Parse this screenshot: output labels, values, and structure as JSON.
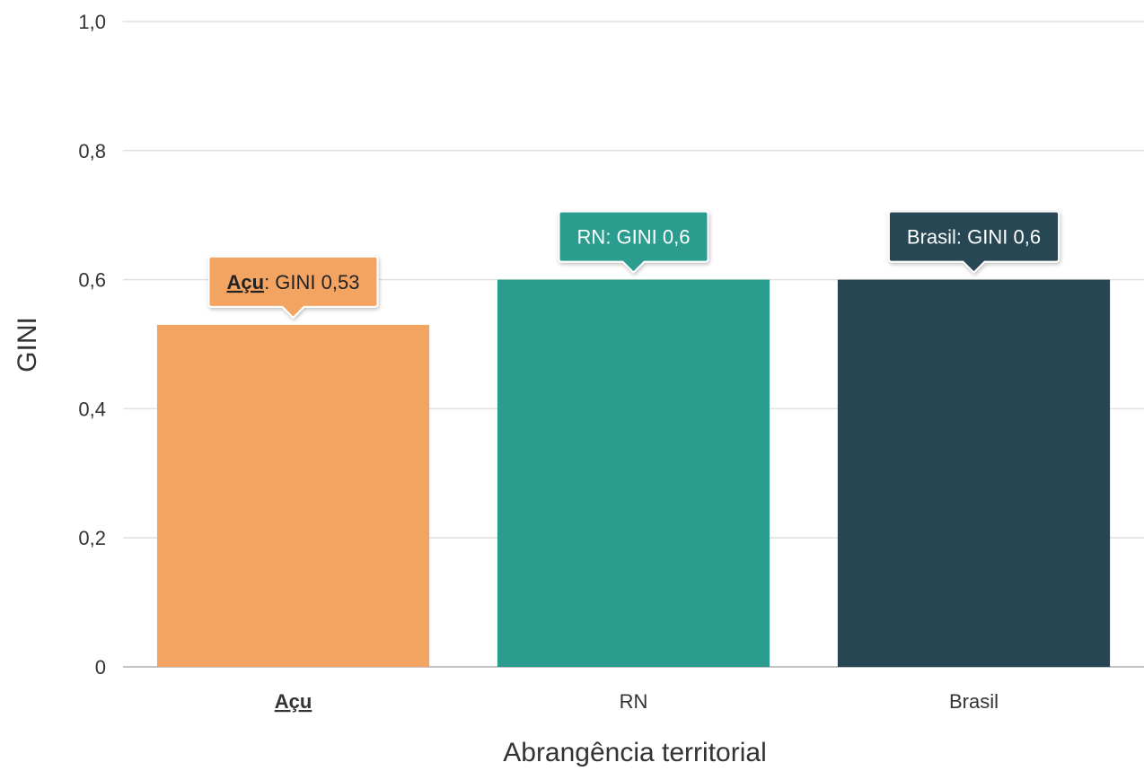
{
  "chart_data": {
    "type": "bar",
    "categories": [
      "Açu",
      "RN",
      "Brasil"
    ],
    "values": [
      0.53,
      0.6,
      0.6
    ],
    "colors": [
      "#f3a462",
      "#2a9d8f",
      "#264653"
    ],
    "highlight_category": "Açu",
    "xlabel": "Abrangência territorial",
    "ylabel": "GINI",
    "ylim": [
      0,
      1.0
    ],
    "yticks": [
      {
        "value": 0,
        "label": "0"
      },
      {
        "value": 0.2,
        "label": "0,2"
      },
      {
        "value": 0.4,
        "label": "0,4"
      },
      {
        "value": 0.6,
        "label": "0,6"
      },
      {
        "value": 0.8,
        "label": "0,8"
      },
      {
        "value": 1.0,
        "label": "1,0"
      }
    ],
    "grid": true,
    "tooltips": [
      {
        "name": "Açu",
        "text": ": GINI 0,53",
        "bold_name": true,
        "bg": "#f3a462",
        "fg": "#222222"
      },
      {
        "name": "RN",
        "text": ": GINI 0,6",
        "bold_name": false,
        "bg": "#2a9d8f",
        "fg": "#ffffff"
      },
      {
        "name": "Brasil",
        "text": ": GINI 0,6",
        "bold_name": false,
        "bg": "#264653",
        "fg": "#ffffff"
      }
    ]
  }
}
